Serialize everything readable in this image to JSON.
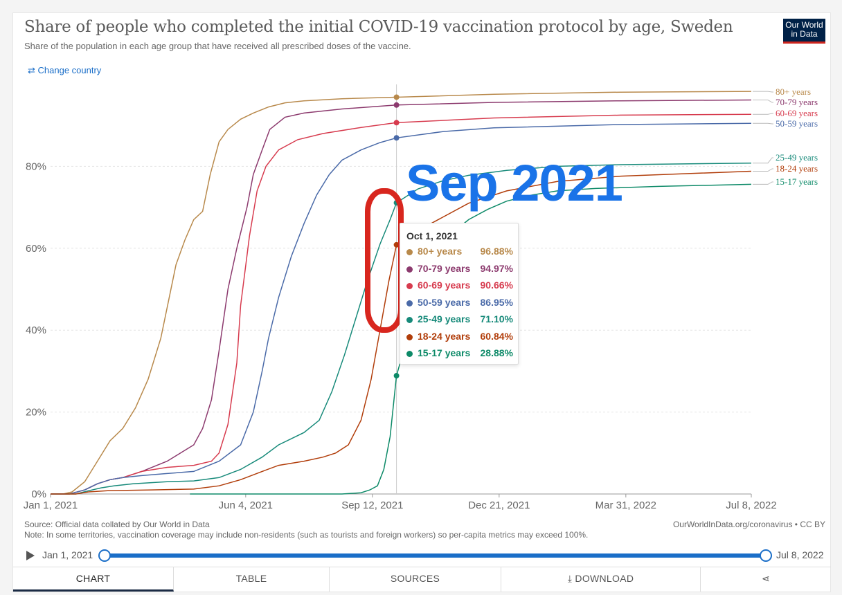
{
  "header": {
    "title": "Share of people who completed the initial COVID-19 vaccination protocol by age, Sweden",
    "subtitle": "Share of the population in each age group that have received all prescribed doses of the vaccine.",
    "logo_line1": "Our World",
    "logo_line2": "in Data",
    "change_country": "⇄ Change country"
  },
  "annotation": {
    "text": "Sep 2021",
    "color": "#1a73e8",
    "circle_color": "#d8261e"
  },
  "tooltip": {
    "date": "Oct 1, 2021",
    "rows": [
      {
        "name": "80+ years",
        "value": "96.88%",
        "color": "#b8894b"
      },
      {
        "name": "70-79 years",
        "value": "94.97%",
        "color": "#8c3a6e"
      },
      {
        "name": "60-69 years",
        "value": "90.66%",
        "color": "#d73b4e"
      },
      {
        "name": "50-59 years",
        "value": "86.95%",
        "color": "#4a6aa8"
      },
      {
        "name": "25-49 years",
        "value": "71.10%",
        "color": "#178a7a"
      },
      {
        "name": "18-24 years",
        "value": "60.84%",
        "color": "#b13d0a"
      },
      {
        "name": "15-17 years",
        "value": "28.88%",
        "color": "#0d8a68"
      }
    ]
  },
  "chart_data": {
    "type": "line",
    "title": "Share of people who completed the initial COVID-19 vaccination protocol by age, Sweden",
    "x_tick_labels": [
      "Jan 1, 2021",
      "Jun 4, 2021",
      "Sep 12, 2021",
      "Dec 21, 2021",
      "Mar 31, 2022",
      "Jul 8, 2022"
    ],
    "x_ticks_day": [
      0,
      154,
      254,
      354,
      454,
      553
    ],
    "y_tick_labels": [
      "0%",
      "20%",
      "40%",
      "60%",
      "80%"
    ],
    "y_ticks": [
      0,
      20,
      40,
      60,
      80
    ],
    "ylim": [
      0,
      100
    ],
    "xlim_day": [
      0,
      553
    ],
    "hover_day": 273,
    "series": [
      {
        "name": "80+ years",
        "color": "#b8894b",
        "points": [
          [
            0,
            0
          ],
          [
            10,
            0
          ],
          [
            17,
            0.5
          ],
          [
            27,
            3
          ],
          [
            37,
            8
          ],
          [
            47,
            13
          ],
          [
            57,
            16
          ],
          [
            67,
            21
          ],
          [
            77,
            28
          ],
          [
            87,
            38
          ],
          [
            93,
            47
          ],
          [
            99,
            56
          ],
          [
            106,
            62
          ],
          [
            113,
            67
          ],
          [
            120,
            69
          ],
          [
            126,
            78
          ],
          [
            133,
            86
          ],
          [
            140,
            89
          ],
          [
            150,
            91.5
          ],
          [
            160,
            93
          ],
          [
            172,
            94.5
          ],
          [
            185,
            95.5
          ],
          [
            200,
            96
          ],
          [
            230,
            96.5
          ],
          [
            273,
            96.88
          ],
          [
            350,
            97.6
          ],
          [
            450,
            98.1
          ],
          [
            553,
            98.3
          ]
        ]
      },
      {
        "name": "70-79 years",
        "color": "#8c3a6e",
        "points": [
          [
            0,
            0
          ],
          [
            15,
            0
          ],
          [
            27,
            1
          ],
          [
            37,
            2.5
          ],
          [
            47,
            3.5
          ],
          [
            57,
            4
          ],
          [
            72,
            5.5
          ],
          [
            92,
            8
          ],
          [
            113,
            12
          ],
          [
            120,
            16
          ],
          [
            127,
            23
          ],
          [
            133,
            35
          ],
          [
            140,
            50
          ],
          [
            147,
            60
          ],
          [
            155,
            70
          ],
          [
            160,
            78
          ],
          [
            167,
            84
          ],
          [
            173,
            89
          ],
          [
            185,
            92
          ],
          [
            200,
            93
          ],
          [
            230,
            94
          ],
          [
            273,
            94.97
          ],
          [
            350,
            95.6
          ],
          [
            450,
            96
          ],
          [
            553,
            96.2
          ]
        ]
      },
      {
        "name": "60-69 years",
        "color": "#d73b4e",
        "points": [
          [
            0,
            0
          ],
          [
            15,
            0
          ],
          [
            27,
            1
          ],
          [
            37,
            2.5
          ],
          [
            47,
            3.5
          ],
          [
            57,
            4
          ],
          [
            72,
            5.5
          ],
          [
            92,
            6.5
          ],
          [
            113,
            7
          ],
          [
            127,
            8
          ],
          [
            133,
            10
          ],
          [
            140,
            17
          ],
          [
            147,
            32
          ],
          [
            150,
            46
          ],
          [
            157,
            63
          ],
          [
            163,
            74
          ],
          [
            170,
            80
          ],
          [
            180,
            84
          ],
          [
            195,
            86.5
          ],
          [
            215,
            88
          ],
          [
            245,
            89.5
          ],
          [
            273,
            90.66
          ],
          [
            350,
            91.8
          ],
          [
            450,
            92.5
          ],
          [
            553,
            92.7
          ]
        ]
      },
      {
        "name": "50-59 years",
        "color": "#4a6aa8",
        "points": [
          [
            0,
            0
          ],
          [
            15,
            0
          ],
          [
            27,
            1
          ],
          [
            37,
            2.5
          ],
          [
            47,
            3.5
          ],
          [
            57,
            4
          ],
          [
            72,
            4.5
          ],
          [
            92,
            5
          ],
          [
            113,
            5.5
          ],
          [
            133,
            8
          ],
          [
            150,
            12
          ],
          [
            160,
            20
          ],
          [
            167,
            30
          ],
          [
            172,
            38
          ],
          [
            180,
            48
          ],
          [
            190,
            58
          ],
          [
            200,
            66
          ],
          [
            210,
            73
          ],
          [
            220,
            78
          ],
          [
            230,
            81.5
          ],
          [
            245,
            84
          ],
          [
            260,
            85.8
          ],
          [
            273,
            86.95
          ],
          [
            310,
            88.5
          ],
          [
            350,
            89.4
          ],
          [
            450,
            90.2
          ],
          [
            553,
            90.5
          ]
        ]
      },
      {
        "name": "25-49 years",
        "color": "#178a7a",
        "points": [
          [
            0,
            0
          ],
          [
            20,
            0
          ],
          [
            30,
            0.8
          ],
          [
            40,
            1.5
          ],
          [
            50,
            2
          ],
          [
            65,
            2.5
          ],
          [
            92,
            3
          ],
          [
            113,
            3.2
          ],
          [
            133,
            4
          ],
          [
            150,
            6
          ],
          [
            167,
            9
          ],
          [
            180,
            12
          ],
          [
            200,
            15
          ],
          [
            212,
            18
          ],
          [
            222,
            25
          ],
          [
            232,
            34
          ],
          [
            242,
            44
          ],
          [
            250,
            52
          ],
          [
            260,
            61
          ],
          [
            268,
            67
          ],
          [
            273,
            71.1
          ],
          [
            290,
            74.5
          ],
          [
            310,
            76.5
          ],
          [
            330,
            77.8
          ],
          [
            360,
            79
          ],
          [
            400,
            80
          ],
          [
            450,
            80.4
          ],
          [
            553,
            80.8
          ]
        ]
      },
      {
        "name": "18-24 years",
        "color": "#b13d0a",
        "points": [
          [
            0,
            0
          ],
          [
            20,
            0
          ],
          [
            30,
            0.5
          ],
          [
            45,
            0.8
          ],
          [
            80,
            1
          ],
          [
            113,
            1.2
          ],
          [
            133,
            2
          ],
          [
            150,
            3.5
          ],
          [
            167,
            5.5
          ],
          [
            180,
            7
          ],
          [
            200,
            8
          ],
          [
            215,
            9
          ],
          [
            225,
            10
          ],
          [
            235,
            12
          ],
          [
            245,
            18
          ],
          [
            253,
            28
          ],
          [
            260,
            40
          ],
          [
            267,
            52
          ],
          [
            273,
            60.84
          ],
          [
            285,
            63.5
          ],
          [
            300,
            66
          ],
          [
            330,
            71
          ],
          [
            360,
            74
          ],
          [
            400,
            76.3
          ],
          [
            450,
            77.6
          ],
          [
            553,
            78.8
          ]
        ]
      },
      {
        "name": "15-17 years",
        "color": "#0d8a68",
        "points": [
          [
            110,
            0
          ],
          [
            230,
            0
          ],
          [
            245,
            0.3
          ],
          [
            252,
            1
          ],
          [
            258,
            2
          ],
          [
            263,
            6
          ],
          [
            268,
            14
          ],
          [
            273,
            28.88
          ],
          [
            285,
            42
          ],
          [
            295,
            55
          ],
          [
            310,
            62
          ],
          [
            330,
            67
          ],
          [
            345,
            69.5
          ],
          [
            360,
            71.5
          ],
          [
            380,
            73
          ],
          [
            400,
            74
          ],
          [
            430,
            74.6
          ],
          [
            480,
            75.1
          ],
          [
            553,
            75.6
          ]
        ]
      }
    ],
    "end_labels": [
      {
        "name": "80+ years",
        "color": "#b8894b"
      },
      {
        "name": "70-79 years",
        "color": "#8c3a6e"
      },
      {
        "name": "60-69 years",
        "color": "#d73b4e"
      },
      {
        "name": "50-59 years",
        "color": "#4a6aa8"
      },
      {
        "name": "25-49 years",
        "color": "#178a7a"
      },
      {
        "name": "18-24 years",
        "color": "#b13d0a"
      },
      {
        "name": "15-17 years",
        "color": "#0d8a68"
      }
    ]
  },
  "footer": {
    "source": "Source: Official data collated by Our World in Data",
    "note": "Note: In some territories, vaccination coverage may include non-residents (such as tourists and foreign workers) so per-capita metrics may exceed 100%.",
    "credit": "OurWorldInData.org/coronavirus • CC BY"
  },
  "timeline": {
    "start": "Jan 1, 2021",
    "end": "Jul 8, 2022"
  },
  "tabs": {
    "chart": "CHART",
    "table": "TABLE",
    "sources": "SOURCES",
    "download": "⤓ DOWNLOAD",
    "share": "⋖"
  }
}
